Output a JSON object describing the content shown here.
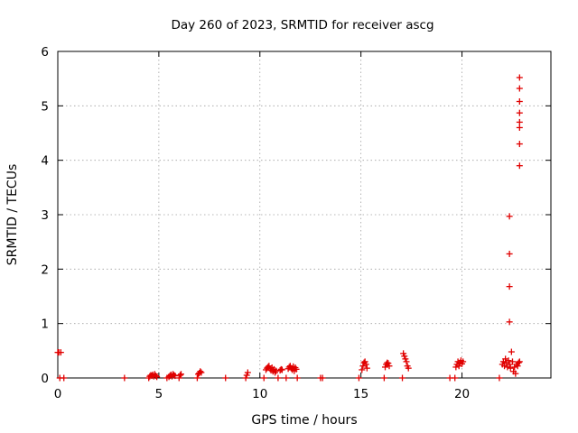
{
  "chart_data": {
    "type": "scatter",
    "title": "Day 260 of 2023, SRMTID for receiver ascg",
    "xlabel": "GPS time / hours",
    "ylabel": "SRMTID / TECUs",
    "xlim": [
      0,
      24.4
    ],
    "ylim": [
      0,
      6
    ],
    "xticks": [
      0,
      5,
      10,
      15,
      20
    ],
    "yticks": [
      0,
      1,
      2,
      3,
      4,
      5,
      6
    ],
    "grid": true,
    "marker": "plus",
    "color": "#e00000",
    "series": [
      {
        "name": "SRMTID",
        "points": [
          [
            0.0,
            0.47
          ],
          [
            0.05,
            0.47
          ],
          [
            0.15,
            0.47
          ],
          [
            0.1,
            0.0
          ],
          [
            0.3,
            0.0
          ],
          [
            3.3,
            0.0
          ],
          [
            4.5,
            0.0
          ],
          [
            4.55,
            0.03
          ],
          [
            4.6,
            0.05
          ],
          [
            4.65,
            0.04
          ],
          [
            4.7,
            0.06
          ],
          [
            4.75,
            0.03
          ],
          [
            4.8,
            0.07
          ],
          [
            4.85,
            0.04
          ],
          [
            4.9,
            0.02
          ],
          [
            5.4,
            0.0
          ],
          [
            5.5,
            0.02
          ],
          [
            5.55,
            0.04
          ],
          [
            5.6,
            0.06
          ],
          [
            5.65,
            0.03
          ],
          [
            5.7,
            0.07
          ],
          [
            5.75,
            0.05
          ],
          [
            5.8,
            0.04
          ],
          [
            6.0,
            0.0
          ],
          [
            6.05,
            0.05
          ],
          [
            6.1,
            0.07
          ],
          [
            6.9,
            0.0
          ],
          [
            6.95,
            0.07
          ],
          [
            7.0,
            0.09
          ],
          [
            7.05,
            0.12
          ],
          [
            7.1,
            0.1
          ],
          [
            8.3,
            0.0
          ],
          [
            9.3,
            0.0
          ],
          [
            9.35,
            0.05
          ],
          [
            9.4,
            0.1
          ],
          [
            10.2,
            0.0
          ],
          [
            10.3,
            0.15
          ],
          [
            10.35,
            0.18
          ],
          [
            10.4,
            0.2
          ],
          [
            10.45,
            0.22
          ],
          [
            10.5,
            0.17
          ],
          [
            10.55,
            0.14
          ],
          [
            10.6,
            0.19
          ],
          [
            10.65,
            0.12
          ],
          [
            10.7,
            0.16
          ],
          [
            10.75,
            0.1
          ],
          [
            10.8,
            0.13
          ],
          [
            10.9,
            0.0
          ],
          [
            11.0,
            0.14
          ],
          [
            11.05,
            0.16
          ],
          [
            11.1,
            0.15
          ],
          [
            11.3,
            0.0
          ],
          [
            11.4,
            0.17
          ],
          [
            11.45,
            0.2
          ],
          [
            11.5,
            0.22
          ],
          [
            11.55,
            0.18
          ],
          [
            11.6,
            0.15
          ],
          [
            11.65,
            0.21
          ],
          [
            11.7,
            0.13
          ],
          [
            11.75,
            0.19
          ],
          [
            11.8,
            0.16
          ],
          [
            11.85,
            0.0
          ],
          [
            13.0,
            0.0
          ],
          [
            13.1,
            0.0
          ],
          [
            14.9,
            0.0
          ],
          [
            15.05,
            0.15
          ],
          [
            15.1,
            0.22
          ],
          [
            15.15,
            0.28
          ],
          [
            15.2,
            0.3
          ],
          [
            15.25,
            0.25
          ],
          [
            15.3,
            0.18
          ],
          [
            16.15,
            0.0
          ],
          [
            16.2,
            0.2
          ],
          [
            16.25,
            0.25
          ],
          [
            16.3,
            0.28
          ],
          [
            16.35,
            0.27
          ],
          [
            16.4,
            0.22
          ],
          [
            17.05,
            0.0
          ],
          [
            17.1,
            0.45
          ],
          [
            17.15,
            0.4
          ],
          [
            17.2,
            0.35
          ],
          [
            17.25,
            0.3
          ],
          [
            17.3,
            0.22
          ],
          [
            17.35,
            0.18
          ],
          [
            19.4,
            0.0
          ],
          [
            19.65,
            0.0
          ],
          [
            19.7,
            0.2
          ],
          [
            19.75,
            0.25
          ],
          [
            19.8,
            0.3
          ],
          [
            19.85,
            0.22
          ],
          [
            19.9,
            0.28
          ],
          [
            19.95,
            0.32
          ],
          [
            20.0,
            0.26
          ],
          [
            20.05,
            0.3
          ],
          [
            21.85,
            0.0
          ],
          [
            22.0,
            0.25
          ],
          [
            22.05,
            0.3
          ],
          [
            22.1,
            0.22
          ],
          [
            22.15,
            0.35
          ],
          [
            22.2,
            0.28
          ],
          [
            22.25,
            0.2
          ],
          [
            22.3,
            0.32
          ],
          [
            22.35,
            0.25
          ],
          [
            22.4,
            0.18
          ],
          [
            22.45,
            0.48
          ],
          [
            22.5,
            0.3
          ],
          [
            22.55,
            0.12
          ],
          [
            22.6,
            0.2
          ],
          [
            22.65,
            0.08
          ],
          [
            22.7,
            0.25
          ],
          [
            22.75,
            0.22
          ],
          [
            22.8,
            0.28
          ],
          [
            22.85,
            0.3
          ],
          [
            22.35,
            1.03
          ],
          [
            22.35,
            1.68
          ],
          [
            22.35,
            2.28
          ],
          [
            22.35,
            2.97
          ],
          [
            22.85,
            3.9
          ],
          [
            22.85,
            4.3
          ],
          [
            22.85,
            4.6
          ],
          [
            22.85,
            4.7
          ],
          [
            22.85,
            4.87
          ],
          [
            22.85,
            5.08
          ],
          [
            22.85,
            5.32
          ],
          [
            22.85,
            5.52
          ]
        ]
      }
    ]
  }
}
